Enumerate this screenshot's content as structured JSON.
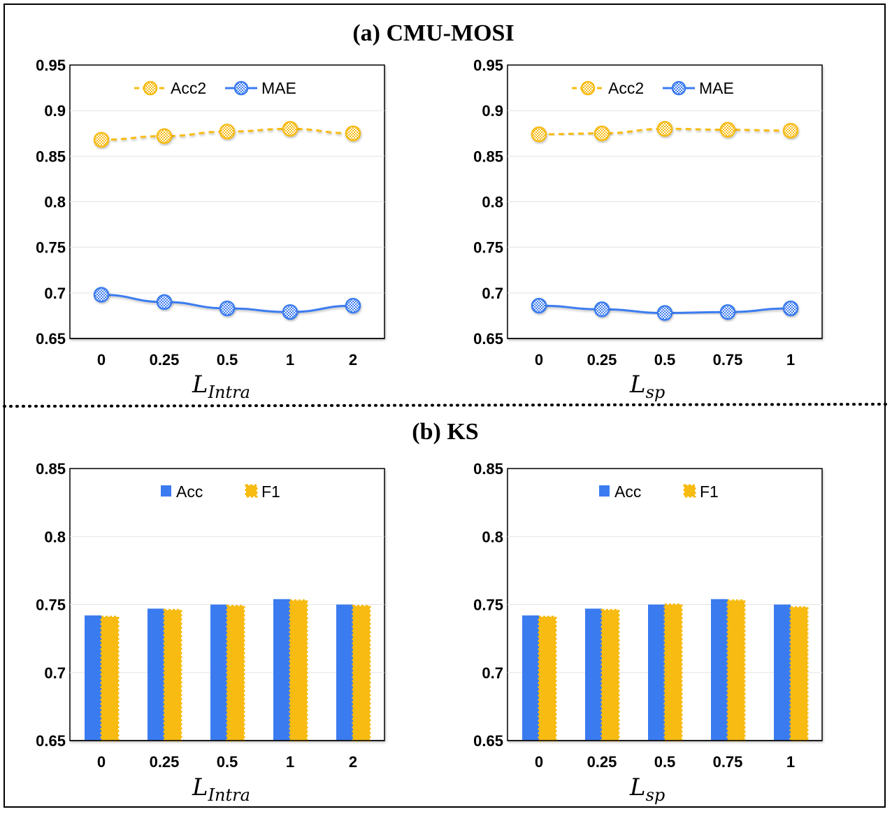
{
  "sections": {
    "a_title": "(a) CMU-MOSI",
    "b_title": "(b) KS"
  },
  "colors": {
    "acc2": "#F7BB12",
    "mae": "#3B7BF0",
    "acc": "#3B7BF0",
    "f1": "#F7BB12"
  },
  "chart_data": [
    {
      "id": "a-left",
      "type": "line",
      "categories": [
        "0",
        "0.25",
        "0.5",
        "1",
        "2"
      ],
      "series": [
        {
          "name": "Acc2",
          "values": [
            0.868,
            0.872,
            0.877,
            0.88,
            0.875
          ]
        },
        {
          "name": "MAE",
          "values": [
            0.698,
            0.69,
            0.683,
            0.679,
            0.686
          ]
        }
      ],
      "ylim": [
        0.65,
        0.95
      ],
      "yticks": [
        "0.65",
        "0.7",
        "0.75",
        "0.8",
        "0.85",
        "0.9",
        "0.95"
      ],
      "xlabel_main": "L",
      "xlabel_sub": "Intra",
      "legend": "top-center"
    },
    {
      "id": "a-right",
      "type": "line",
      "categories": [
        "0",
        "0.25",
        "0.5",
        "0.75",
        "1"
      ],
      "series": [
        {
          "name": "Acc2",
          "values": [
            0.874,
            0.875,
            0.88,
            0.879,
            0.878
          ]
        },
        {
          "name": "MAE",
          "values": [
            0.686,
            0.682,
            0.678,
            0.679,
            0.683
          ]
        }
      ],
      "ylim": [
        0.65,
        0.95
      ],
      "yticks": [
        "0.65",
        "0.7",
        "0.75",
        "0.8",
        "0.85",
        "0.9",
        "0.95"
      ],
      "xlabel_main": "L",
      "xlabel_sub": "sp",
      "legend": "top-center"
    },
    {
      "id": "b-left",
      "type": "bar",
      "categories": [
        "0",
        "0.25",
        "0.5",
        "1",
        "2"
      ],
      "series": [
        {
          "name": "Acc",
          "values": [
            0.742,
            0.747,
            0.75,
            0.754,
            0.75
          ]
        },
        {
          "name": "F1",
          "values": [
            0.741,
            0.746,
            0.749,
            0.753,
            0.749
          ]
        }
      ],
      "ylim": [
        0.65,
        0.85
      ],
      "yticks": [
        "0.65",
        "0.7",
        "0.75",
        "0.8",
        "0.85"
      ],
      "xlabel_main": "L",
      "xlabel_sub": "Intra",
      "legend": "top-center"
    },
    {
      "id": "b-right",
      "type": "bar",
      "categories": [
        "0",
        "0.25",
        "0.5",
        "0.75",
        "1"
      ],
      "series": [
        {
          "name": "Acc",
          "values": [
            0.742,
            0.747,
            0.75,
            0.754,
            0.75
          ]
        },
        {
          "name": "F1",
          "values": [
            0.741,
            0.746,
            0.75,
            0.753,
            0.748
          ]
        }
      ],
      "ylim": [
        0.65,
        0.85
      ],
      "yticks": [
        "0.65",
        "0.7",
        "0.75",
        "0.8",
        "0.85"
      ],
      "xlabel_main": "L",
      "xlabel_sub": "sp",
      "legend": "top-center"
    }
  ]
}
